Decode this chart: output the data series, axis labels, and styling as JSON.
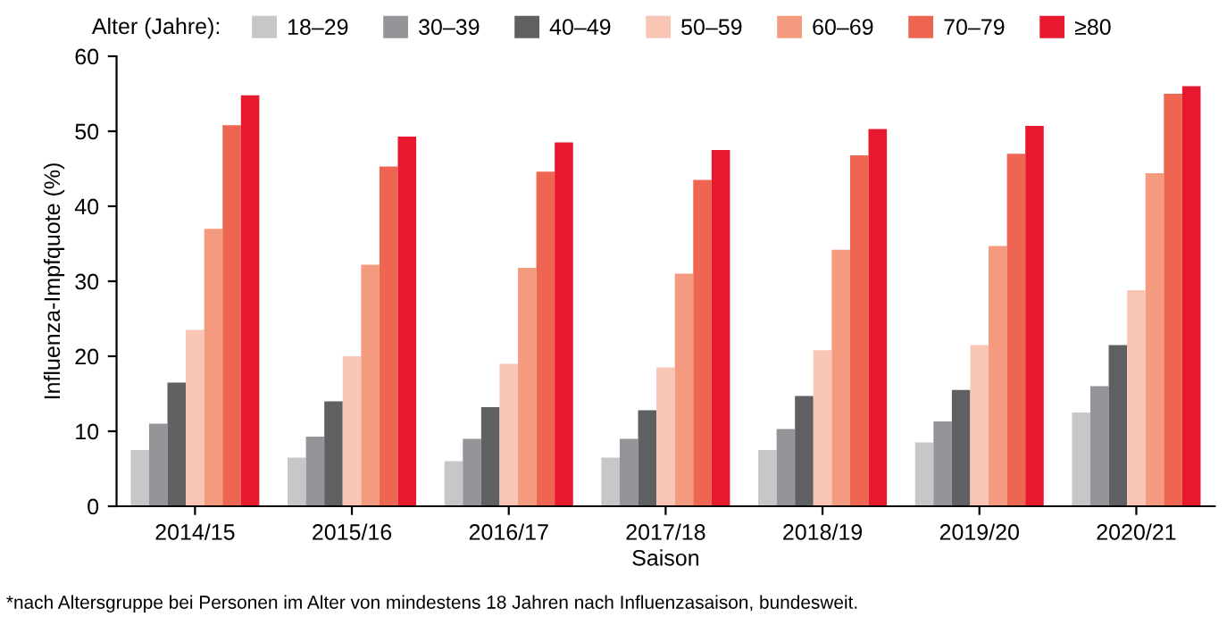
{
  "chart_data": {
    "type": "bar",
    "xlabel": "Saison",
    "ylabel": "Influenza-Impfquote (%)",
    "legend_title": "Alter (Jahre):",
    "legend": "top",
    "grid": false,
    "categories": [
      "2014/15",
      "2015/16",
      "2016/17",
      "2017/18",
      "2018/19",
      "2019/20",
      "2020/21"
    ],
    "series": [
      {
        "name": "18–29",
        "color": "#c6c7c9",
        "values": [
          7.5,
          6.5,
          6,
          6.5,
          7.5,
          8.5,
          12.5
        ]
      },
      {
        "name": "30–39",
        "color": "#949598",
        "values": [
          11,
          9.3,
          9,
          9,
          10.3,
          11.3,
          16
        ]
      },
      {
        "name": "40–49",
        "color": "#5f6062",
        "values": [
          16.5,
          14,
          13.2,
          12.8,
          14.7,
          15.5,
          21.5
        ]
      },
      {
        "name": "50–59",
        "color": "#f9c6b6",
        "values": [
          23.5,
          20,
          19,
          18.5,
          20.8,
          21.5,
          28.8
        ]
      },
      {
        "name": "60–69",
        "color": "#f39a7f",
        "values": [
          37,
          32.2,
          31.8,
          31,
          34.2,
          34.7,
          44.4
        ]
      },
      {
        "name": "70–79",
        "color": "#ee6552",
        "values": [
          50.8,
          45.3,
          44.6,
          43.5,
          46.8,
          47,
          55
        ]
      },
      {
        "name": "≥80",
        "color": "#e8192f",
        "values": [
          54.8,
          49.3,
          48.5,
          47.5,
          50.3,
          50.7,
          56
        ]
      }
    ],
    "ylim": [
      0,
      60
    ],
    "yticks": [
      0,
      10,
      20,
      30,
      40,
      50,
      60
    ],
    "annotations": [
      "*nach Altersgruppe bei Personen im Alter von mindestens 18 Jahren nach Influenzasaison, bundesweit."
    ]
  }
}
